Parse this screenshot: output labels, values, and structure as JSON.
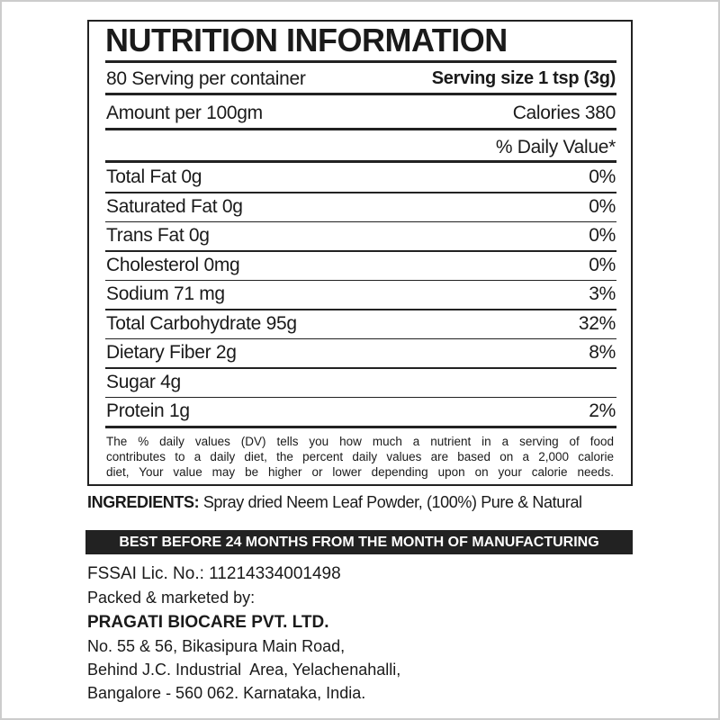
{
  "header": {
    "title": "NUTRITION INFORMATION"
  },
  "serving": {
    "left": "80 Serving per container",
    "right": "Serving size 1 tsp (3g)"
  },
  "amount": {
    "left": "Amount per 100gm",
    "right": "Calories 380"
  },
  "daily_value_header": "% Daily Value*",
  "nutrients": [
    {
      "name": "Total Fat 0g",
      "dv": "0%"
    },
    {
      "name": "Saturated Fat 0g",
      "dv": "0%"
    },
    {
      "name": "Trans Fat 0g",
      "dv": "0%"
    },
    {
      "name": "Cholesterol 0mg",
      "dv": "0%"
    },
    {
      "name": "Sodium 71 mg",
      "dv": "3%"
    },
    {
      "name": "Total Carbohydrate 95g",
      "dv": "32%"
    },
    {
      "name": "Dietary Fiber 2g",
      "dv": "8%"
    },
    {
      "name": "Sugar 4g"
    },
    {
      "name": "Protein 1g",
      "dv": "2%"
    }
  ],
  "footnote": [
    "The % daily values (DV) tells you how much a nutrient in a serving of food",
    "contributes to a daily diet, the percent daily values are based on a 2,000 calorie",
    "diet, Your value may be higher or lower depending upon on your calorie needs."
  ],
  "ingredients": {
    "label": "INGREDIENTS:",
    "text": "Spray dried Neem Leaf Powder, (100%) Pure & Natural"
  },
  "best_before": "BEST BEFORE 24 MONTHS FROM THE MONTH OF MANUFACTURING",
  "fssai": "FSSAI Lic. No.: 11214334001498",
  "packed_by": "Packed & marketed by:",
  "company": "PRAGATI BIOCARE PVT. LTD.",
  "address": [
    "No. 55 & 56, Bikasipura Main Road,",
    "Behind J.C. Industrial  Area, Yelachenahalli,",
    "Bangalore - 560 062. Karnataka, India."
  ]
}
